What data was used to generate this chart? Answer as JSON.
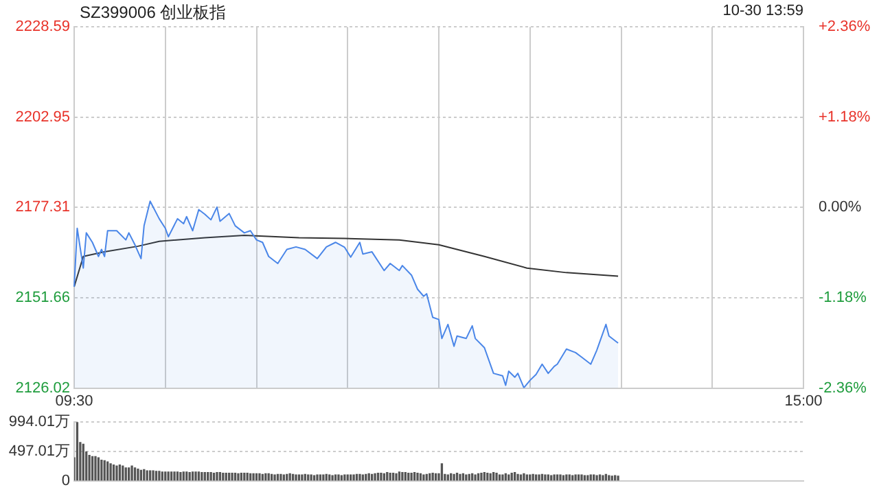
{
  "chart_data": [
    {
      "type": "line",
      "title": "SZ399006 创业板指",
      "annotations": [
        "10-30 13:59"
      ],
      "categories": [
        "09:30",
        null,
        null,
        null,
        null,
        null,
        null,
        null,
        null,
        null,
        null,
        null,
        null,
        null,
        null,
        null,
        null,
        null,
        null,
        null,
        null,
        null,
        null,
        null,
        null,
        null,
        null,
        null,
        null,
        null,
        null,
        null,
        null,
        null,
        null,
        null,
        null,
        null,
        null,
        null,
        null,
        null,
        null,
        null,
        null,
        null,
        null,
        null,
        null,
        null,
        null,
        null,
        null,
        null,
        null,
        null,
        null,
        null,
        null,
        null,
        null,
        null,
        null,
        null,
        null,
        null,
        null,
        null,
        null,
        null,
        null,
        null,
        null,
        null,
        null,
        null,
        null,
        null,
        null,
        null,
        null,
        null,
        null,
        null,
        null,
        null,
        null,
        null,
        null,
        null,
        null,
        null,
        null,
        null,
        null,
        null,
        null,
        null,
        null,
        null,
        null,
        null,
        null,
        null,
        null,
        null,
        null,
        null,
        null,
        null,
        null,
        null,
        null,
        null,
        null,
        null,
        null,
        null,
        null,
        null,
        null,
        null,
        null,
        null,
        null,
        null,
        null,
        null,
        null,
        null,
        null,
        null,
        null,
        null,
        null,
        null,
        null,
        null,
        null,
        null,
        null,
        null,
        null,
        null,
        null,
        null,
        null,
        null,
        null,
        null,
        null,
        null,
        null,
        null,
        null,
        null,
        null,
        null,
        null,
        null,
        null,
        null,
        null,
        null,
        null,
        null,
        null,
        null,
        null,
        null,
        null,
        null,
        null,
        null,
        null,
        null,
        null,
        null,
        null,
        null,
        null,
        null,
        null,
        null,
        null,
        null,
        null,
        null,
        null,
        null,
        null,
        null,
        null,
        null,
        null,
        null,
        null,
        null,
        null,
        null,
        null,
        null,
        null,
        null,
        null,
        null,
        null,
        null,
        null,
        null,
        null,
        null,
        null,
        null,
        null,
        null,
        null,
        null,
        null,
        null,
        null,
        null,
        null,
        null,
        null,
        null,
        null,
        null,
        null,
        null,
        null,
        null,
        null,
        null,
        null,
        null,
        null,
        null,
        null,
        null,
        "15:00"
      ],
      "ylim": [
        2126.02,
        2228.59
      ],
      "yticks": [
        2126.02,
        2151.66,
        2177.31,
        2202.95,
        2228.59
      ],
      "y2lim": [
        -2.36,
        2.36
      ],
      "y2ticks": [
        {
          "value": -2.36,
          "label": "-2.36%"
        },
        {
          "value": -1.18,
          "label": "-1.18%"
        },
        {
          "value": 0,
          "label": "0.00%"
        },
        {
          "value": 1.18,
          "label": "+1.18%"
        },
        {
          "value": 2.36,
          "label": "+2.36%"
        }
      ],
      "grid": true,
      "legend": false,
      "marker": "none",
      "line_style": "solid",
      "series": [
        {
          "type": "area",
          "color": "#4a86e8",
          "values": [
            2154.8,
            2171.4,
            null,
            2160.1,
            2170.1,
            null,
            2167.4,
            null,
            2163.4,
            2165.4,
            2163.4,
            2170.7,
            null,
            null,
            2170.7,
            null,
            null,
            2168.1,
            2170.1,
            null,
            2166.7,
            null,
            2162.8,
            2172.1,
            null,
            2179.1,
            null,
            null,
            2174.1,
            null,
            2171.4,
            2169.0,
            null,
            null,
            2174.1,
            null,
            2172.7,
            2174.7,
            null,
            2170.7,
            null,
            2176.7,
            null,
            2175.4,
            null,
            2173.8,
            null,
            2177.4,
            2173.4,
            null,
            null,
            2175.6,
            null,
            2172.1,
            null,
            null,
            2170.1,
            null,
            2170.7,
            null,
            2168.1,
            null,
            2167.4,
            null,
            2163.4,
            null,
            null,
            2161.4,
            null,
            null,
            2165.4,
            null,
            null,
            2166.1,
            null,
            null,
            2165.4,
            null,
            null,
            null,
            2162.8,
            null,
            null,
            2166.1,
            null,
            null,
            2167.4,
            null,
            null,
            2166.0,
            null,
            2163.2,
            null,
            null,
            2167.4,
            2164.1,
            null,
            null,
            2164.7,
            null,
            null,
            null,
            2159.4,
            null,
            2161.4,
            null,
            null,
            2159.4,
            2160.8,
            null,
            null,
            2158.1,
            null,
            2154.1,
            null,
            2152.1,
            2152.8,
            null,
            2146.1,
            null,
            2145.5,
            2140.1,
            null,
            2144.1,
            null,
            2137.9,
            2140.8,
            null,
            null,
            2140.1,
            null,
            2143.7,
            2140.1,
            null,
            null,
            2137.5,
            null,
            null,
            2130.2,
            null,
            null,
            2129.5,
            2126.8,
            2130.8,
            null,
            2129.1,
            2130.2,
            null,
            2126.1,
            null,
            2128.2,
            null,
            2129.9,
            null,
            2132.8,
            null,
            2130.2,
            null,
            2132.2,
            2132.8,
            null,
            null,
            2137.1,
            null,
            null,
            2136.1,
            null,
            2134.8,
            null,
            null,
            2132.8,
            null,
            2136.8,
            null,
            null,
            2144.1,
            2140.8,
            null,
            null,
            2138.8,
            null,
            null,
            null,
            null,
            null,
            null,
            null,
            null,
            null,
            null,
            null,
            null,
            null,
            null,
            null,
            null,
            null,
            null,
            null,
            null,
            null,
            null,
            null,
            null,
            null,
            null,
            null,
            null,
            null,
            null,
            null,
            null,
            null,
            null,
            null,
            null,
            null,
            null,
            null,
            null,
            null,
            null,
            null,
            null,
            null,
            null,
            null,
            null,
            null,
            null,
            null,
            null,
            null,
            null,
            null,
            null,
            null,
            null,
            null,
            null,
            null
          ]
        },
        {
          "color": "#333333",
          "values": [
            2154.8,
            null,
            null,
            2163.4,
            null,
            null,
            null,
            null,
            null,
            null,
            2164.7,
            null,
            null,
            null,
            null,
            null,
            null,
            null,
            null,
            null,
            null,
            2166.3,
            null,
            null,
            null,
            null,
            null,
            null,
            2167.7,
            null,
            null,
            null,
            null,
            null,
            null,
            null,
            null,
            null,
            null,
            null,
            null,
            null,
            null,
            2168.7,
            null,
            null,
            null,
            null,
            null,
            null,
            null,
            null,
            null,
            null,
            null,
            null,
            2169.4,
            null,
            null,
            null,
            null,
            null,
            null,
            null,
            null,
            null,
            null,
            null,
            null,
            null,
            null,
            null,
            null,
            null,
            2168.7,
            null,
            null,
            null,
            null,
            null,
            null,
            null,
            null,
            null,
            null,
            null,
            null,
            null,
            null,
            2168.5,
            null,
            null,
            null,
            null,
            null,
            null,
            null,
            null,
            null,
            null,
            null,
            null,
            null,
            null,
            null,
            null,
            null,
            2168.1,
            null,
            null,
            null,
            null,
            null,
            null,
            null,
            null,
            null,
            null,
            null,
            null,
            2166.7,
            null,
            null,
            null,
            null,
            null,
            null,
            null,
            null,
            null,
            null,
            null,
            null,
            null,
            null,
            2163.4,
            null,
            null,
            null,
            null,
            null,
            null,
            null,
            null,
            null,
            null,
            null,
            null,
            null,
            2160.1,
            null,
            null,
            null,
            null,
            null,
            null,
            null,
            null,
            null,
            null,
            null,
            null,
            2158.8,
            null,
            null,
            null,
            null,
            null,
            null,
            null,
            null,
            null,
            null,
            null,
            null,
            null,
            null,
            null,
            null,
            2157.8,
            null,
            null,
            null,
            null,
            null,
            null,
            null,
            null,
            null,
            null,
            null,
            null,
            null,
            null,
            null,
            null,
            null,
            null,
            null,
            null,
            null,
            null,
            null,
            null,
            null,
            null,
            null,
            null,
            null,
            null,
            null,
            null,
            null,
            null,
            null,
            null,
            null,
            null,
            null,
            null,
            null,
            null,
            null,
            null,
            null,
            null,
            null,
            null,
            null,
            null,
            null,
            null,
            null,
            null,
            null,
            null,
            null,
            null,
            null,
            null,
            null
          ]
        }
      ]
    },
    {
      "type": "bar",
      "tick_labels": "y",
      "grid": "y",
      "legend": false,
      "categories": [
        null,
        null,
        null,
        null,
        null,
        null,
        null,
        null,
        null,
        null,
        null,
        null,
        null,
        null,
        null,
        null,
        null,
        null,
        null,
        null,
        null,
        null,
        null,
        null,
        null,
        null,
        null,
        null,
        null,
        null,
        null,
        null,
        null,
        null,
        null,
        null,
        null,
        null,
        null,
        null,
        null,
        null,
        null,
        null,
        null,
        null,
        null,
        null,
        null,
        null,
        null,
        null,
        null,
        null,
        null,
        null,
        null,
        null,
        null,
        null,
        null,
        null,
        null,
        null,
        null,
        null,
        null,
        null,
        null,
        null,
        null,
        null,
        null,
        null,
        null,
        null,
        null,
        null,
        null,
        null,
        null,
        null,
        null,
        null,
        null,
        null,
        null,
        null,
        null,
        null,
        null,
        null,
        null,
        null,
        null,
        null,
        null,
        null,
        null,
        null,
        null,
        null,
        null,
        null,
        null,
        null,
        null,
        null,
        null,
        null,
        null,
        null,
        null,
        null,
        null,
        null,
        null,
        null,
        null,
        null,
        null,
        null,
        null,
        null,
        null,
        null,
        null,
        null,
        null,
        null,
        null,
        null,
        null,
        null,
        null,
        null,
        null,
        null,
        null,
        null,
        null,
        null,
        null,
        null,
        null,
        null,
        null,
        null,
        null,
        null,
        null,
        null,
        null,
        null,
        null,
        null,
        null,
        null,
        null,
        null,
        null,
        null,
        null,
        null,
        null,
        null,
        null,
        null,
        null,
        null,
        null,
        null,
        null,
        null,
        null,
        null,
        null,
        null,
        null,
        null,
        null,
        null,
        null,
        null,
        null,
        null,
        null,
        null,
        null,
        null,
        null,
        null,
        null,
        null,
        null,
        null,
        null,
        null,
        null,
        null,
        null,
        null,
        null,
        null,
        null,
        null,
        null,
        null,
        null,
        null,
        null,
        null,
        null,
        null,
        null,
        null,
        null,
        null,
        null,
        null,
        null,
        null,
        null,
        null,
        null,
        null,
        null,
        null,
        null,
        null,
        null,
        null,
        null,
        null,
        null,
        null,
        null,
        null,
        null,
        null,
        null
      ],
      "ylim": [
        0,
        994.01
      ],
      "yticks": [
        0,
        {
          "value": 497.01,
          "label": "497.01万"
        },
        {
          "value": 994.01,
          "label": "994.01万"
        }
      ],
      "series": [
        {
          "color": "#555555",
          "values": [
            390,
            990,
            650,
            620,
            490,
            430,
            410,
            410,
            390,
            350,
            340,
            320,
            290,
            270,
            250,
            270,
            250,
            220,
            220,
            250,
            220,
            200,
            180,
            190,
            170,
            170,
            170,
            160,
            160,
            150,
            150,
            150,
            150,
            150,
            150,
            140,
            150,
            150,
            140,
            150,
            150,
            150,
            140,
            140,
            140,
            140,
            130,
            140,
            140,
            130,
            130,
            130,
            130,
            130,
            120,
            130,
            130,
            130,
            120,
            120,
            120,
            120,
            110,
            120,
            120,
            110,
            100,
            110,
            110,
            100,
            110,
            120,
            110,
            100,
            100,
            100,
            110,
            100,
            100,
            90,
            100,
            100,
            100,
            110,
            100,
            90,
            100,
            100,
            90,
            100,
            100,
            100,
            100,
            110,
            110,
            100,
            110,
            120,
            110,
            120,
            130,
            130,
            120,
            140,
            130,
            130,
            120,
            150,
            140,
            140,
            130,
            130,
            140,
            130,
            120,
            100,
            110,
            120,
            130,
            120,
            120,
            290,
            110,
            100,
            120,
            110,
            130,
            110,
            120,
            100,
            110,
            120,
            100,
            120,
            130,
            140,
            130,
            120,
            140,
            130,
            100,
            100,
            120,
            100,
            130,
            140,
            110,
            100,
            120,
            100,
            100,
            110,
            100,
            100,
            110,
            100,
            100,
            90,
            100,
            100,
            100,
            90,
            100,
            100,
            90,
            100,
            100,
            100,
            90,
            90,
            100,
            100,
            90,
            100,
            90,
            110,
            90,
            80,
            90,
            80,
            null,
            null,
            null,
            null,
            null,
            null,
            null,
            null,
            null,
            null,
            null,
            null,
            null,
            null,
            null,
            null,
            null,
            null,
            null,
            null,
            null,
            null,
            null,
            null,
            null,
            null,
            null,
            null,
            null,
            null,
            null,
            null,
            null,
            null,
            null,
            null,
            null,
            null,
            null,
            null,
            null,
            null,
            null,
            null,
            null,
            null,
            null,
            null,
            null,
            null,
            null,
            null,
            null,
            null,
            null,
            null,
            null,
            null,
            null,
            null,
            null
          ]
        }
      ]
    }
  ]
}
